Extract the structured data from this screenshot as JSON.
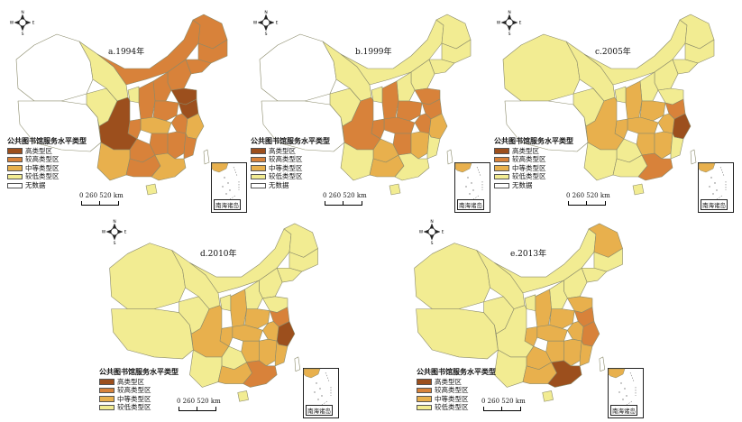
{
  "colors": {
    "highest": "#9c4f1d",
    "higher": "#d8823a",
    "medium": "#e8b04d",
    "lower": "#f2ec92",
    "nodata": "#ffffff",
    "border": "#8a8a6a"
  },
  "compass_labels": {
    "n": "N",
    "s": "S",
    "e": "E",
    "w": "W"
  },
  "legend": {
    "title": "公共图书馆服务水平类型",
    "items": [
      "高类型区",
      "较高类型区",
      "中等类型区",
      "较低类型区",
      "无数据"
    ]
  },
  "scale": {
    "label": "0   260 520 km"
  },
  "inset_label": "南海诸岛",
  "panels": [
    {
      "title": "a.1994年",
      "regions": {
        "xinjiang": "nodata",
        "xizang": "nodata",
        "qinghai": "lower",
        "gansu": "lower",
        "neimenggu": "higher",
        "heilongjiang": "higher",
        "jilin": "higher",
        "liaoning": "higher",
        "hebei": "higher",
        "shanxi": "higher",
        "shaanxi": "higher",
        "ningxia": "lower",
        "henan": "higher",
        "shandong": "highest",
        "jiangsu": "highest",
        "anhui": "higher",
        "sichuan": "highest",
        "chongqing": "higher",
        "hubei": "medium",
        "hunan": "higher",
        "jiangxi": "higher",
        "zhejiang": "medium",
        "fujian": "higher",
        "yunnan": "medium",
        "guizhou": "higher",
        "guangxi": "higher",
        "guangdong": "medium",
        "hainan": "lower",
        "taiwan": "nodata"
      }
    },
    {
      "title": "b.1999年",
      "regions": {
        "xinjiang": "nodata",
        "xizang": "nodata",
        "qinghai": "lower",
        "gansu": "lower",
        "neimenggu": "lower",
        "heilongjiang": "lower",
        "jilin": "lower",
        "liaoning": "lower",
        "hebei": "lower",
        "shanxi": "lower",
        "shaanxi": "higher",
        "ningxia": "lower",
        "henan": "higher",
        "shandong": "higher",
        "jiangsu": "higher",
        "anhui": "higher",
        "sichuan": "higher",
        "chongqing": "higher",
        "hubei": "higher",
        "hunan": "higher",
        "jiangxi": "medium",
        "zhejiang": "medium",
        "fujian": "lower",
        "yunnan": "lower",
        "guizhou": "medium",
        "guangxi": "medium",
        "guangdong": "lower",
        "hainan": "lower",
        "taiwan": "nodata"
      }
    },
    {
      "title": "c.2005年",
      "regions": {
        "xinjiang": "lower",
        "xizang": "nodata",
        "qinghai": "lower",
        "gansu": "lower",
        "neimenggu": "lower",
        "heilongjiang": "lower",
        "jilin": "lower",
        "liaoning": "lower",
        "hebei": "lower",
        "shanxi": "lower",
        "shaanxi": "medium",
        "ningxia": "lower",
        "henan": "medium",
        "shandong": "lower",
        "jiangsu": "higher",
        "anhui": "medium",
        "sichuan": "medium",
        "chongqing": "medium",
        "hubei": "medium",
        "hunan": "medium",
        "jiangxi": "medium",
        "zhejiang": "highest",
        "fujian": "lower",
        "yunnan": "lower",
        "guizhou": "lower",
        "guangxi": "lower",
        "guangdong": "higher",
        "hainan": "lower",
        "taiwan": "nodata"
      }
    },
    {
      "title": "d.2010年",
      "regions": {
        "xinjiang": "lower",
        "xizang": "lower",
        "qinghai": "lower",
        "gansu": "lower",
        "neimenggu": "lower",
        "heilongjiang": "lower",
        "jilin": "lower",
        "liaoning": "lower",
        "hebei": "lower",
        "shanxi": "lower",
        "shaanxi": "medium",
        "ningxia": "lower",
        "henan": "medium",
        "shandong": "lower",
        "jiangsu": "higher",
        "anhui": "medium",
        "sichuan": "medium",
        "chongqing": "medium",
        "hubei": "medium",
        "hunan": "medium",
        "jiangxi": "medium",
        "zhejiang": "highest",
        "fujian": "medium",
        "yunnan": "lower",
        "guizhou": "lower",
        "guangxi": "medium",
        "guangdong": "higher",
        "hainan": "lower",
        "taiwan": "nodata"
      }
    },
    {
      "title": "e.2013年",
      "regions": {
        "xinjiang": "lower",
        "xizang": "lower",
        "qinghai": "lower",
        "gansu": "lower",
        "neimenggu": "lower",
        "heilongjiang": "medium",
        "jilin": "lower",
        "liaoning": "lower",
        "hebei": "lower",
        "shanxi": "lower",
        "shaanxi": "medium",
        "ningxia": "lower",
        "henan": "medium",
        "shandong": "medium",
        "jiangsu": "higher",
        "anhui": "medium",
        "sichuan": "lower",
        "chongqing": "medium",
        "hubei": "medium",
        "hunan": "medium",
        "jiangxi": "medium",
        "zhejiang": "higher",
        "fujian": "medium",
        "yunnan": "lower",
        "guizhou": "medium",
        "guangxi": "medium",
        "guangdong": "highest",
        "hainan": "lower",
        "taiwan": "nodata"
      }
    }
  ]
}
